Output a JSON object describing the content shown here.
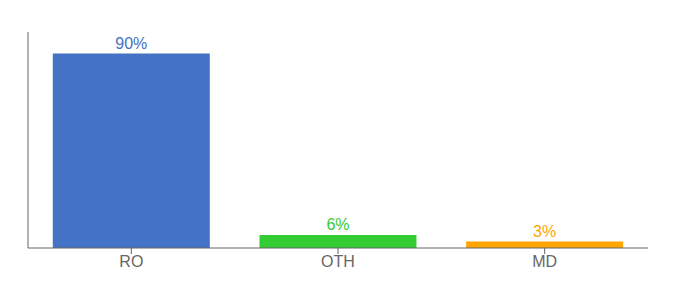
{
  "chart_data": {
    "type": "bar",
    "categories": [
      "RO",
      "OTH",
      "MD"
    ],
    "values": [
      90,
      6,
      3
    ],
    "value_labels": [
      "90%",
      "6%",
      "3%"
    ],
    "colors": [
      "#4472C4",
      "#33CC33",
      "#FFA500"
    ],
    "ylim": [
      0,
      100
    ],
    "data_labels": true,
    "tick_labels": "x",
    "grid": false
  }
}
